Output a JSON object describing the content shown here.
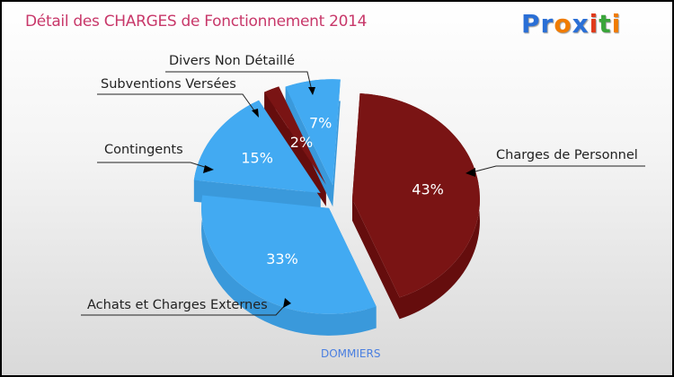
{
  "header": {
    "title": "Détail des CHARGES de Fonctionnement 2014",
    "logo": "Proxiti"
  },
  "footer": "DOMMIERS",
  "colors": {
    "blue": "#42aaf2",
    "blue_side": "#3a99db",
    "red": "#7a1414",
    "red_side": "#650d0d"
  },
  "chart_data": {
    "type": "pie",
    "title": "Détail des CHARGES de Fonctionnement 2014",
    "slices": [
      {
        "label": "Charges de Personnel",
        "value": 43,
        "pct": "43%",
        "color": "red"
      },
      {
        "label": "Achats et Charges Externes",
        "value": 33,
        "pct": "33%",
        "color": "blue"
      },
      {
        "label": "Contingents",
        "value": 15,
        "pct": "15%",
        "color": "blue"
      },
      {
        "label": "Subventions Versées",
        "value": 2,
        "pct": "2%",
        "color": "red"
      },
      {
        "label": "Divers Non Détaillé",
        "value": 7,
        "pct": "7%",
        "color": "blue"
      }
    ]
  }
}
